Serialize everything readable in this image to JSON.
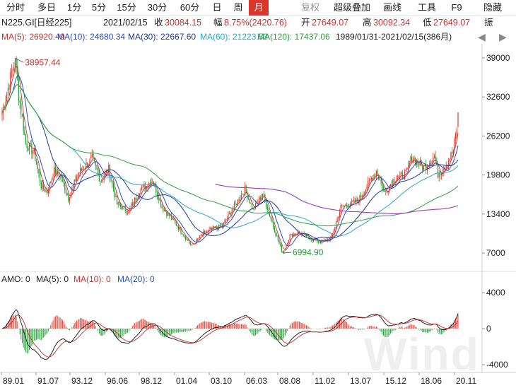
{
  "toolbar": {
    "items": [
      {
        "label": "分时",
        "state": "normal"
      },
      {
        "label": "多日",
        "state": "normal"
      },
      {
        "label": "1分",
        "state": "normal"
      },
      {
        "label": "5分",
        "state": "normal"
      },
      {
        "label": "15分",
        "state": "normal"
      },
      {
        "label": "30分",
        "state": "normal"
      },
      {
        "label": "60分",
        "state": "normal"
      },
      {
        "label": "日",
        "state": "normal"
      },
      {
        "label": "周",
        "state": "normal"
      },
      {
        "label": "月",
        "state": "active"
      },
      {
        "label": "复权",
        "state": "dim"
      },
      {
        "label": "超级叠加",
        "state": "normal"
      },
      {
        "label": "画线",
        "state": "normal"
      },
      {
        "label": "工具",
        "state": "normal"
      },
      {
        "label": "F9",
        "state": "normal"
      },
      {
        "label": "隐藏",
        "state": "normal"
      }
    ]
  },
  "quote": {
    "symbol": "N225.GI[日经225]",
    "date": "2021/02/15",
    "close_label": "收",
    "close_value": "30084.15",
    "change_label": "幅",
    "change_value": "8.75%(2420.76)",
    "open_label": "开",
    "open_value": "27649.07",
    "high_label": "高",
    "high_value": "30092.34",
    "low_label": "低",
    "low_value": "27649.07",
    "amp_label": "振"
  },
  "ma_legend": [
    {
      "text": "MA(5): 26920.49",
      "color": "#d0302b"
    },
    {
      "text": "MA(10): 24680.34",
      "color": "#2a4fc0"
    },
    {
      "text": "MA(30): 22667.60",
      "color": "#1a3a9a"
    },
    {
      "text": "MA(60): 21223.53",
      "color": "#29a8c8"
    },
    {
      "text": "MA(120): 17437.06",
      "color": "#2f9e3a"
    },
    {
      "text": "1989/01/31-2021/02/15(386月)",
      "color": "#222222"
    }
  ],
  "nav": {
    "prev": "◀",
    "next": "▶"
  },
  "price_axis": [
    "39000",
    "32600",
    "26200",
    "19800",
    "13400",
    "7000"
  ],
  "annotations": {
    "high": "38957.44",
    "low": "6994.90"
  },
  "indicator_legend": [
    {
      "text": "AMO: 0",
      "color": "#222222"
    },
    {
      "text": "MA(5): 0",
      "color": "#222222"
    },
    {
      "text": "MA(10): 0",
      "color": "#d0302b"
    },
    {
      "text": "MA(20): 0",
      "color": "#2a4fc0"
    }
  ],
  "amo_axis": [
    "4000",
    "0",
    "-4000"
  ],
  "time_axis": [
    "89.01",
    "91.07",
    "93.12",
    "96.06",
    "98.12",
    "01.04",
    "03.10",
    "06.03",
    "08.08",
    "11.02",
    "13.07",
    "15.12",
    "18.06",
    "20.11"
  ],
  "watermark": "Wind",
  "colors": {
    "up": "#e03a2e",
    "down": "#1f9e34",
    "ma5": "#d0302b",
    "ma10": "#2a4fc0",
    "ma30": "#1a3a9a",
    "ma60": "#29a8c8",
    "ma120": "#2f9e3a",
    "long": "#a03ac0"
  },
  "chart_data": {
    "type": "line",
    "title": "",
    "xlabel": "",
    "ylabel": "",
    "x": [
      "1989-12",
      "1991-07",
      "1993-12",
      "1996-06",
      "1998-12",
      "2001-04",
      "2003-04",
      "2006-03",
      "2008-10",
      "2011-02",
      "2012-11",
      "2015-06",
      "2018-06",
      "2020-03",
      "2021-02"
    ],
    "series": [
      {
        "name": "N225",
        "values": [
          38957,
          22000,
          19000,
          21500,
          13800,
          13900,
          7800,
          17000,
          6995,
          10200,
          9500,
          20500,
          22500,
          17500,
          30084
        ]
      }
    ],
    "ylim": [
      5000,
      40000
    ]
  }
}
